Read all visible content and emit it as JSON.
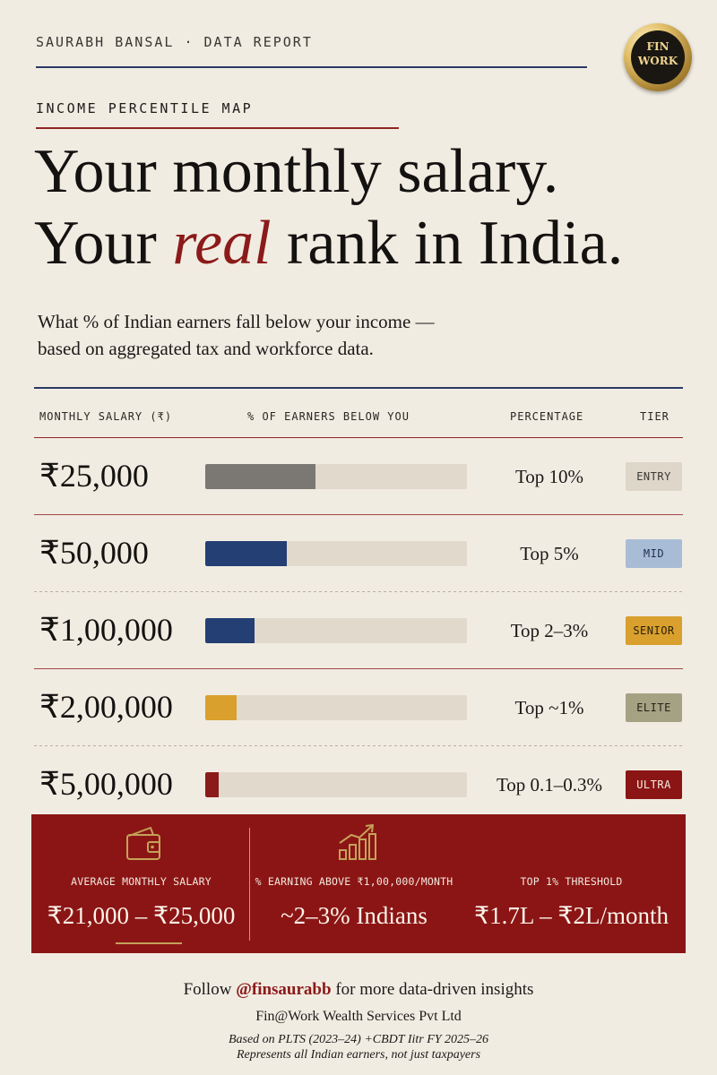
{
  "brand": {
    "author": "SAURABH BANSAL",
    "separator": "·",
    "report": "DATA REPORT"
  },
  "logo": {
    "line1": "FIN",
    "line2": "WORK"
  },
  "section_label": "INCOME PERCENTILE MAP",
  "headline": {
    "line1": "Your monthly salary.",
    "line2_pre": "Your ",
    "line2_em": "real",
    "line2_post": " rank in India."
  },
  "subhead": {
    "line1": "What % of Indian earners fall below your income —",
    "line2": "based on aggregated tax and workforce data."
  },
  "table": {
    "headers": {
      "salary": "MONTHLY SALARY (₹)",
      "bar": "% OF EARNERS BELOW YOU",
      "pct": "PERCENTAGE",
      "tier": "TIER"
    }
  },
  "chart_data": {
    "type": "bar",
    "title": "INCOME PERCENTILE MAP",
    "xlabel": "% OF EARNERS BELOW YOU",
    "ylabel": "MONTHLY SALARY (₹)",
    "rows": [
      {
        "salary": "₹25,000",
        "percentage": "Top 10%",
        "tier": "ENTRY",
        "bar_fraction": 0.42,
        "fill_color": "#7b7772",
        "tier_bg": "#ddd6c9",
        "tier_fg": "#3b3733"
      },
      {
        "salary": "₹50,000",
        "percentage": "Top 5%",
        "tier": "MID",
        "bar_fraction": 0.31,
        "fill_color": "#243f73",
        "tier_bg": "#a9bcd6",
        "tier_fg": "#1f2f52"
      },
      {
        "salary": "₹1,00,000",
        "percentage": "Top 2–3%",
        "tier": "SENIOR",
        "bar_fraction": 0.19,
        "fill_color": "#243f73",
        "tier_bg": "#d9a02e",
        "tier_fg": "#2a1f08"
      },
      {
        "salary": "₹2,00,000",
        "percentage": "Top ~1%",
        "tier": "ELITE",
        "bar_fraction": 0.12,
        "fill_color": "#d9a02e",
        "tier_bg": "#a5a283",
        "tier_fg": "#24221a"
      },
      {
        "salary": "₹5,00,000",
        "percentage": "Top 0.1–0.3%",
        "tier": "ULTRA",
        "bar_fraction": 0.05,
        "fill_color": "#8b1a1a",
        "tier_bg": "#8b1515",
        "tier_fg": "#f6eee4"
      }
    ]
  },
  "panel": {
    "stats": [
      {
        "icon": "wallet-icon",
        "label": "AVERAGE MONTHLY SALARY",
        "value": "₹21,000 – ₹25,000"
      },
      {
        "icon": "growth-chart-icon",
        "label": "% EARNING ABOVE ₹1,00,000/MONTH",
        "value": "~2–3% Indians"
      },
      {
        "icon": "",
        "label": "TOP 1% THRESHOLD",
        "value": "₹1.7L – ₹2L/month"
      }
    ]
  },
  "footer": {
    "follow_pre": "Follow ",
    "handle": "@finsaurabb",
    "follow_post": " for more data-driven insights",
    "company": "Fin@Work Wealth Services Pvt Ltd",
    "source_line1": "Based on PLTS (2023–24) +CBDT Iitr FY 2025–26",
    "source_line2": "Represents all Indian earners, not just taxpayers"
  },
  "colors": {
    "background": "#f1ece2",
    "accent_red": "#8b1515",
    "accent_blue": "#2a3a66",
    "gold": "#c4a25a"
  }
}
